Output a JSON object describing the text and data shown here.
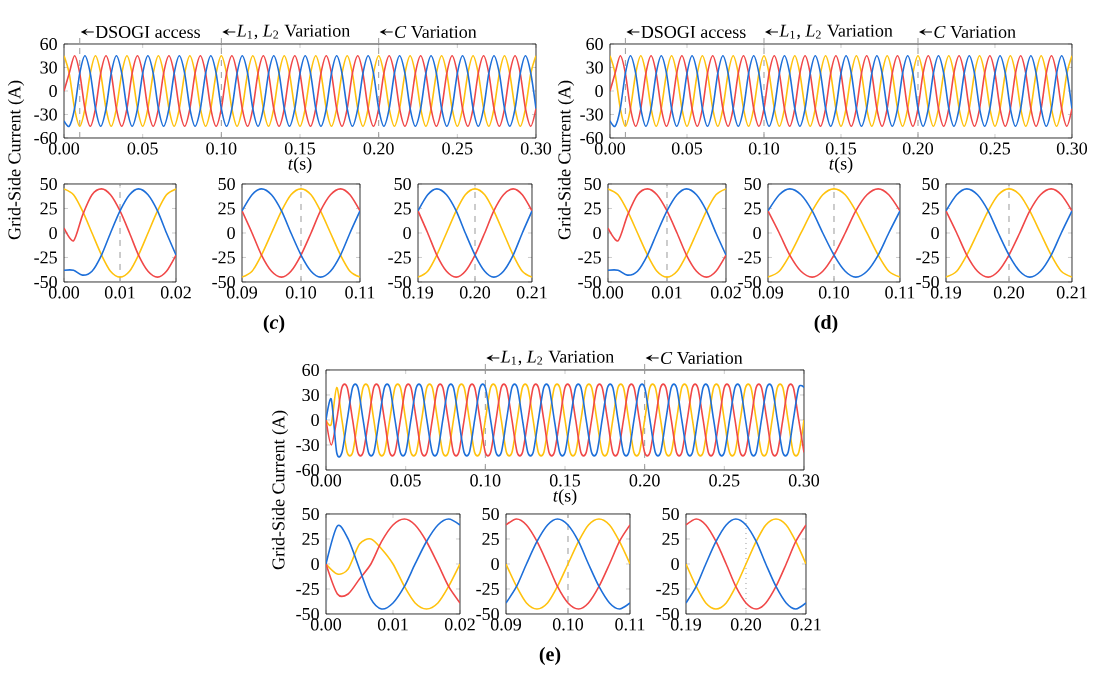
{
  "chart_data": [
    {
      "type": "line",
      "ylabel": "Grid-Side Current (A)",
      "xlabel": "*t*(s)",
      "annotations": [
        "(*c*)"
      ],
      "xlim": [
        0,
        0.3
      ],
      "ylim": [
        -60,
        60
      ],
      "xticks": [
        {
          "value": 0,
          "label": "0.00"
        },
        {
          "value": 0.05,
          "label": "0.05"
        },
        {
          "value": 0.1,
          "label": "0.10"
        },
        {
          "value": 0.15,
          "label": "0.15"
        },
        {
          "value": 0.2,
          "label": "0.20"
        },
        {
          "value": 0.25,
          "label": "0.25"
        },
        {
          "value": 0.3,
          "label": "0.30"
        }
      ],
      "yticks": [
        -60,
        -30,
        0,
        30,
        60
      ],
      "ref_lines": [
        {
          "axis": "x",
          "value": 0.01,
          "label": "DSOGI access",
          "color": "#999999",
          "line_style": "dashed"
        },
        {
          "axis": "x",
          "value": 0.1,
          "label": "*L*$_{1}$, *L*$_{2}$ Variation",
          "color": "#999999",
          "line_style": "dashed"
        },
        {
          "axis": "x",
          "value": 0.2,
          "label": "*C* Variation",
          "color": "#999999",
          "line_style": "dashed"
        }
      ],
      "x": [
        0,
        0.0033,
        0.0067,
        0.01,
        0.0133,
        0.0167,
        0.02,
        0.0233,
        0.0267,
        0.03,
        0.0333,
        0.0367,
        0.04,
        0.0433,
        0.0467,
        0.05,
        0.0533,
        0.0567,
        0.06,
        0.0633,
        0.0667,
        0.07,
        0.0733,
        0.0767,
        0.08,
        0.0833,
        0.0867,
        0.09,
        0.0933,
        0.0967,
        0.1,
        0.1033,
        0.1067,
        0.11,
        0.1133,
        0.1167,
        0.12,
        0.1233,
        0.1267,
        0.13,
        0.1333,
        0.1367,
        0.14,
        0.1433,
        0.1467,
        0.15,
        0.1533,
        0.1567,
        0.16,
        0.1633,
        0.1667,
        0.17,
        0.1733,
        0.1767,
        0.18,
        0.1833,
        0.1867,
        0.19,
        0.1933,
        0.1967,
        0.2,
        0.2033,
        0.2067,
        0.21,
        0.2133,
        0.2167,
        0.22,
        0.2233,
        0.2267,
        0.23,
        0.2333,
        0.2367,
        0.24,
        0.2433,
        0.2467,
        0.25,
        0.2533,
        0.2567,
        0.26,
        0.2633,
        0.2667,
        0.27,
        0.2733,
        0.2767,
        0.28,
        0.2833,
        0.2867,
        0.29,
        0.2933,
        0.2967,
        0.3
      ],
      "series": [
        {
          "color": "#ffc20e",
          "values": [
            45,
            22.5,
            -22.5,
            -45,
            -22.5,
            22.5,
            45,
            22.5,
            -22.5,
            -45,
            -22.5,
            22.5,
            45,
            22.5,
            -22.5,
            -45,
            -22.5,
            22.5,
            45,
            22.5,
            -22.5,
            -45,
            -22.5,
            22.5,
            45,
            22.5,
            -22.5,
            -45,
            -22.5,
            22.5,
            45,
            22.5,
            -22.5,
            -45,
            -22.5,
            22.5,
            45,
            22.5,
            -22.5,
            -45,
            -22.5,
            22.5,
            45,
            22.5,
            -22.5,
            -45,
            -22.5,
            22.5,
            45,
            22.5,
            -22.5,
            -45,
            -22.5,
            22.5,
            45,
            22.5,
            -22.5,
            -45,
            -22.5,
            22.5,
            45,
            22.5,
            -22.5,
            -45,
            -22.5,
            22.5,
            45,
            22.5,
            -22.5,
            -45,
            -22.5,
            22.5,
            45,
            22.5,
            -22.5,
            -45,
            -22.5,
            22.5,
            45,
            22.5,
            -22.5,
            -45,
            -22.5,
            22.5,
            45,
            22.5,
            -22.5,
            -45,
            -22.5,
            22.5,
            45
          ]
        },
        {
          "color": "#f04848",
          "values": [
            0,
            22.5,
            45,
            22.5,
            -22.5,
            -45,
            -22.5,
            22.5,
            45,
            22.5,
            -22.5,
            -45,
            -22.5,
            22.5,
            45,
            22.5,
            -22.5,
            -45,
            -22.5,
            22.5,
            45,
            22.5,
            -22.5,
            -45,
            -22.5,
            22.5,
            45,
            22.5,
            -22.5,
            -45,
            -22.5,
            22.5,
            45,
            22.5,
            -22.5,
            -45,
            -22.5,
            22.5,
            45,
            22.5,
            -22.5,
            -45,
            -22.5,
            22.5,
            45,
            22.5,
            -22.5,
            -45,
            -22.5,
            22.5,
            45,
            22.5,
            -22.5,
            -45,
            -22.5,
            22.5,
            45,
            22.5,
            -22.5,
            -45,
            -22.5,
            22.5,
            45,
            22.5,
            -22.5,
            -45,
            -22.5,
            22.5,
            45,
            22.5,
            -22.5,
            -45,
            -22.5,
            22.5,
            45,
            22.5,
            -22.5,
            -45,
            -22.5,
            22.5,
            45,
            22.5,
            -22.5,
            -45,
            -22.5,
            22.5,
            45,
            22.5,
            -22.5,
            -45,
            -22.5
          ]
        },
        {
          "color": "#1e6fd9",
          "values": [
            -38,
            -45,
            -22.5,
            22.5,
            45,
            22.5,
            -22.5,
            -45,
            -22.5,
            22.5,
            45,
            22.5,
            -22.5,
            -45,
            -22.5,
            22.5,
            45,
            22.5,
            -22.5,
            -45,
            -22.5,
            22.5,
            45,
            22.5,
            -22.5,
            -45,
            -22.5,
            22.5,
            45,
            22.5,
            -22.5,
            -45,
            -22.5,
            22.5,
            45,
            22.5,
            -22.5,
            -45,
            -22.5,
            22.5,
            45,
            22.5,
            -22.5,
            -45,
            -22.5,
            22.5,
            45,
            22.5,
            -22.5,
            -45,
            -22.5,
            22.5,
            45,
            22.5,
            -22.5,
            -45,
            -22.5,
            22.5,
            45,
            22.5,
            -22.5,
            -45,
            -22.5,
            22.5,
            45,
            22.5,
            -22.5,
            -45,
            -22.5,
            22.5,
            45,
            22.5,
            -22.5,
            -45,
            -22.5,
            22.5,
            45,
            22.5,
            -22.5,
            -45,
            -22.5,
            22.5,
            45,
            22.5,
            -22.5,
            -45,
            -22.5,
            22.5,
            45,
            22.5,
            -22.5
          ]
        }
      ]
    },
    {
      "type": "line",
      "ylabel": "Grid-Side Current (A)",
      "xlabel": "*t*(s)",
      "annotations": [
        "(**d**)"
      ],
      "xlim": [
        0,
        0.3
      ],
      "ylim": [
        -60,
        60
      ],
      "xticks": [
        {
          "value": 0,
          "label": "0.00"
        },
        {
          "value": 0.05,
          "label": "0.05"
        },
        {
          "value": 0.1,
          "label": "0.10"
        },
        {
          "value": 0.15,
          "label": "0.15"
        },
        {
          "value": 0.2,
          "label": "0.20"
        },
        {
          "value": 0.25,
          "label": "0.25"
        },
        {
          "value": 0.3,
          "label": "0.30"
        }
      ],
      "yticks": [
        -60,
        -30,
        0,
        30,
        60
      ],
      "ref_lines": [
        {
          "axis": "x",
          "value": 0.01,
          "label": "DSOGI access",
          "color": "#999999",
          "line_style": "dashed"
        },
        {
          "axis": "x",
          "value": 0.1,
          "label": "*L*$_{1}$, *L*$_{2}$ Variation",
          "color": "#999999",
          "line_style": "dashed"
        },
        {
          "axis": "x",
          "value": 0.2,
          "label": "*C* Variation",
          "color": "#999999",
          "line_style": "dashed"
        }
      ],
      "x": [
        0,
        0.0033,
        0.0067,
        0.01,
        0.0133,
        0.0167,
        0.02,
        0.0233,
        0.0267,
        0.03,
        0.0333,
        0.0367,
        0.04,
        0.0433,
        0.0467,
        0.05,
        0.0533,
        0.0567,
        0.06,
        0.0633,
        0.0667,
        0.07,
        0.0733,
        0.0767,
        0.08,
        0.0833,
        0.0867,
        0.09,
        0.0933,
        0.0967,
        0.1,
        0.1033,
        0.1067,
        0.11,
        0.1133,
        0.1167,
        0.12,
        0.1233,
        0.1267,
        0.13,
        0.1333,
        0.1367,
        0.14,
        0.1433,
        0.1467,
        0.15,
        0.1533,
        0.1567,
        0.16,
        0.1633,
        0.1667,
        0.17,
        0.1733,
        0.1767,
        0.18,
        0.1833,
        0.1867,
        0.19,
        0.1933,
        0.1967,
        0.2,
        0.2033,
        0.2067,
        0.21,
        0.2133,
        0.2167,
        0.22,
        0.2233,
        0.2267,
        0.23,
        0.2333,
        0.2367,
        0.24,
        0.2433,
        0.2467,
        0.25,
        0.2533,
        0.2567,
        0.26,
        0.2633,
        0.2667,
        0.27,
        0.2733,
        0.2767,
        0.28,
        0.2833,
        0.2867,
        0.29,
        0.2933,
        0.2967,
        0.3
      ],
      "series": [
        {
          "color": "#ffc20e",
          "values": [
            45,
            22.5,
            -22.5,
            -45,
            -22.5,
            22.5,
            45,
            22.5,
            -22.5,
            -45,
            -22.5,
            22.5,
            45,
            22.5,
            -22.5,
            -45,
            -22.5,
            22.5,
            45,
            22.5,
            -22.5,
            -45,
            -22.5,
            22.5,
            45,
            22.5,
            -22.5,
            -45,
            -22.5,
            22.5,
            45,
            22.5,
            -22.5,
            -45,
            -22.5,
            22.5,
            45,
            22.5,
            -22.5,
            -45,
            -22.5,
            22.5,
            45,
            22.5,
            -22.5,
            -45,
            -22.5,
            22.5,
            45,
            22.5,
            -22.5,
            -45,
            -22.5,
            22.5,
            45,
            22.5,
            -22.5,
            -45,
            -22.5,
            22.5,
            45,
            22.5,
            -22.5,
            -45,
            -22.5,
            22.5,
            45,
            22.5,
            -22.5,
            -45,
            -22.5,
            22.5,
            45,
            22.5,
            -22.5,
            -45,
            -22.5,
            22.5,
            45,
            22.5,
            -22.5,
            -45,
            -22.5,
            22.5,
            45,
            22.5,
            -22.5,
            -45,
            -22.5,
            22.5,
            45
          ]
        },
        {
          "color": "#f04848",
          "values": [
            0,
            22.5,
            45,
            22.5,
            -22.5,
            -45,
            -22.5,
            22.5,
            45,
            22.5,
            -22.5,
            -45,
            -22.5,
            22.5,
            45,
            22.5,
            -22.5,
            -45,
            -22.5,
            22.5,
            45,
            22.5,
            -22.5,
            -45,
            -22.5,
            22.5,
            45,
            22.5,
            -22.5,
            -45,
            -22.5,
            22.5,
            45,
            22.5,
            -22.5,
            -45,
            -22.5,
            22.5,
            45,
            22.5,
            -22.5,
            -45,
            -22.5,
            22.5,
            45,
            22.5,
            -22.5,
            -45,
            -22.5,
            22.5,
            45,
            22.5,
            -22.5,
            -45,
            -22.5,
            22.5,
            45,
            22.5,
            -22.5,
            -45,
            -22.5,
            22.5,
            45,
            22.5,
            -22.5,
            -45,
            -22.5,
            22.5,
            45,
            22.5,
            -22.5,
            -45,
            -22.5,
            22.5,
            45,
            22.5,
            -22.5,
            -45,
            -22.5,
            22.5,
            45,
            22.5,
            -22.5,
            -45,
            -22.5,
            22.5,
            45,
            22.5,
            -22.5,
            -45,
            -22.5
          ]
        },
        {
          "color": "#1e6fd9",
          "values": [
            -38,
            -45,
            -22.5,
            22.5,
            45,
            22.5,
            -22.5,
            -45,
            -22.5,
            22.5,
            45,
            22.5,
            -22.5,
            -45,
            -22.5,
            22.5,
            45,
            22.5,
            -22.5,
            -45,
            -22.5,
            22.5,
            45,
            22.5,
            -22.5,
            -45,
            -22.5,
            22.5,
            45,
            22.5,
            -22.5,
            -45,
            -22.5,
            22.5,
            45,
            22.5,
            -22.5,
            -45,
            -22.5,
            22.5,
            45,
            22.5,
            -22.5,
            -45,
            -22.5,
            22.5,
            45,
            22.5,
            -22.5,
            -45,
            -22.5,
            22.5,
            45,
            22.5,
            -22.5,
            -45,
            -22.5,
            22.5,
            45,
            22.5,
            -22.5,
            -45,
            -22.5,
            22.5,
            45,
            22.5,
            -22.5,
            -45,
            -22.5,
            22.5,
            45,
            22.5,
            -22.5,
            -45,
            -22.5,
            22.5,
            45,
            22.5,
            -22.5,
            -45,
            -22.5,
            22.5,
            45,
            22.5,
            -22.5,
            -45,
            -22.5,
            22.5,
            45,
            22.5,
            -22.5
          ]
        }
      ]
    },
    {
      "type": "line",
      "xlim": [
        0,
        0.02
      ],
      "ylim": [
        -50,
        50
      ],
      "xticks": [
        {
          "value": 0,
          "label": "0.00"
        },
        {
          "value": 0.01,
          "label": "0.01"
        },
        {
          "value": 0.02,
          "label": "0.02"
        }
      ],
      "yticks": [
        -50,
        -25,
        0,
        25,
        50
      ],
      "ref_lines": [
        {
          "axis": "x",
          "value": 0.01,
          "color": "#999999",
          "line_style": "dashed"
        }
      ],
      "x": [
        0,
        0.0017,
        0.0033,
        0.005,
        0.0067,
        0.0083,
        0.01,
        0.0117,
        0.0133,
        0.015,
        0.0167,
        0.0183,
        0.02
      ],
      "series": [
        {
          "color": "#ffc20e",
          "values": [
            45,
            39,
            22.5,
            0,
            -22.5,
            -39,
            -45,
            -39,
            -22.5,
            0,
            22.5,
            39,
            45
          ]
        },
        {
          "color": "#f04848",
          "values": [
            5,
            -8,
            18,
            39,
            45,
            39,
            22.5,
            0,
            -22.5,
            -39,
            -45,
            -39,
            -22.5
          ]
        },
        {
          "color": "#1e6fd9",
          "values": [
            -38,
            -38,
            -43,
            -39,
            -22.5,
            0,
            22.5,
            39,
            45,
            39,
            22.5,
            0,
            -22.5
          ]
        }
      ]
    },
    {
      "type": "line",
      "xlim": [
        0.09,
        0.11
      ],
      "ylim": [
        -50,
        50
      ],
      "xticks": [
        {
          "value": 0.09,
          "label": "0.09"
        },
        {
          "value": 0.1,
          "label": "0.10"
        },
        {
          "value": 0.11,
          "label": "0.11"
        }
      ],
      "yticks": [
        -50,
        -25,
        0,
        25,
        50
      ],
      "ref_lines": [
        {
          "axis": "x",
          "value": 0.1,
          "color": "#999999",
          "line_style": "dashed"
        }
      ],
      "x": [
        0.09,
        0.0917,
        0.0933,
        0.095,
        0.0967,
        0.0983,
        0.1,
        0.1017,
        0.1033,
        0.105,
        0.1067,
        0.1083,
        0.11
      ],
      "series": [
        {
          "color": "#ffc20e",
          "values": [
            -45,
            -39,
            -22.5,
            0,
            22.5,
            39,
            45,
            39,
            22.5,
            0,
            -22.5,
            -39,
            -45
          ]
        },
        {
          "color": "#f04848",
          "values": [
            22.5,
            0,
            -22.5,
            -39,
            -45,
            -39,
            -22.5,
            0,
            22.5,
            39,
            45,
            39,
            22.5
          ]
        },
        {
          "color": "#1e6fd9",
          "values": [
            22.5,
            39,
            45,
            39,
            22.5,
            0,
            -22.5,
            -39,
            -45,
            -39,
            -22.5,
            0,
            22.5
          ]
        }
      ]
    },
    {
      "type": "line",
      "xlim": [
        0.19,
        0.21
      ],
      "ylim": [
        -50,
        50
      ],
      "xticks": [
        {
          "value": 0.19,
          "label": "0.19"
        },
        {
          "value": 0.2,
          "label": "0.20"
        },
        {
          "value": 0.21,
          "label": "0.21"
        }
      ],
      "yticks": [
        -50,
        -25,
        0,
        25,
        50
      ],
      "ref_lines": [
        {
          "axis": "x",
          "value": 0.2,
          "color": "#999999",
          "line_style": "dashed"
        }
      ],
      "x": [
        0.19,
        0.1917,
        0.1933,
        0.195,
        0.1967,
        0.1983,
        0.2,
        0.2017,
        0.2033,
        0.205,
        0.2067,
        0.2083,
        0.21
      ],
      "series": [
        {
          "color": "#ffc20e",
          "values": [
            -45,
            -39,
            -22.5,
            0,
            22.5,
            39,
            45,
            39,
            22.5,
            0,
            -22.5,
            -39,
            -45
          ]
        },
        {
          "color": "#f04848",
          "values": [
            22.5,
            0,
            -22.5,
            -39,
            -45,
            -39,
            -22.5,
            0,
            22.5,
            39,
            45,
            39,
            22.5
          ]
        },
        {
          "color": "#1e6fd9",
          "values": [
            22.5,
            39,
            45,
            39,
            22.5,
            0,
            -22.5,
            -39,
            -45,
            -39,
            -22.5,
            0,
            22.5
          ]
        }
      ]
    },
    {
      "type": "line",
      "xlim": [
        0,
        0.02
      ],
      "ylim": [
        -50,
        50
      ],
      "xticks": [
        {
          "value": 0,
          "label": "0.00"
        },
        {
          "value": 0.01,
          "label": "0.01"
        },
        {
          "value": 0.02,
          "label": "0.02"
        }
      ],
      "yticks": [
        -50,
        -25,
        0,
        25,
        50
      ],
      "ref_lines": [
        {
          "axis": "x",
          "value": 0.01,
          "color": "#999999",
          "line_style": "dashed"
        }
      ],
      "x": [
        0,
        0.0017,
        0.0033,
        0.005,
        0.0067,
        0.0083,
        0.01,
        0.0117,
        0.0133,
        0.015,
        0.0167,
        0.0183,
        0.02
      ],
      "series": [
        {
          "color": "#ffc20e",
          "values": [
            45,
            39,
            22.5,
            0,
            -22.5,
            -39,
            -45,
            -39,
            -22.5,
            0,
            22.5,
            39,
            45
          ]
        },
        {
          "color": "#f04848",
          "values": [
            5,
            -8,
            18,
            39,
            45,
            39,
            22.5,
            0,
            -22.5,
            -39,
            -45,
            -39,
            -22.5
          ]
        },
        {
          "color": "#1e6fd9",
          "values": [
            -38,
            -38,
            -43,
            -39,
            -22.5,
            0,
            22.5,
            39,
            45,
            39,
            22.5,
            0,
            -22.5
          ]
        }
      ]
    },
    {
      "type": "line",
      "xlim": [
        0.09,
        0.11
      ],
      "ylim": [
        -50,
        50
      ],
      "xticks": [
        {
          "value": 0.09,
          "label": "0.09"
        },
        {
          "value": 0.1,
          "label": "0.10"
        },
        {
          "value": 0.11,
          "label": "0.11"
        }
      ],
      "yticks": [
        -50,
        -25,
        0,
        25,
        50
      ],
      "ref_lines": [
        {
          "axis": "x",
          "value": 0.1,
          "color": "#999999",
          "line_style": "dashed"
        }
      ],
      "x": [
        0.09,
        0.0917,
        0.0933,
        0.095,
        0.0967,
        0.0983,
        0.1,
        0.1017,
        0.1033,
        0.105,
        0.1067,
        0.1083,
        0.11
      ],
      "series": [
        {
          "color": "#ffc20e",
          "values": [
            -45,
            -39,
            -22.5,
            0,
            22.5,
            39,
            45,
            39,
            22.5,
            0,
            -22.5,
            -39,
            -45
          ]
        },
        {
          "color": "#f04848",
          "values": [
            22.5,
            0,
            -22.5,
            -39,
            -45,
            -39,
            -22.5,
            0,
            22.5,
            39,
            45,
            39,
            22.5
          ]
        },
        {
          "color": "#1e6fd9",
          "values": [
            22.5,
            39,
            45,
            39,
            22.5,
            0,
            -22.5,
            -39,
            -45,
            -39,
            -22.5,
            0,
            22.5
          ]
        }
      ]
    },
    {
      "type": "line",
      "xlim": [
        0.19,
        0.21
      ],
      "ylim": [
        -50,
        50
      ],
      "xticks": [
        {
          "value": 0.19,
          "label": "0.19"
        },
        {
          "value": 0.2,
          "label": "0.20"
        },
        {
          "value": 0.21,
          "label": "0.21"
        }
      ],
      "yticks": [
        -50,
        -25,
        0,
        25,
        50
      ],
      "ref_lines": [
        {
          "axis": "x",
          "value": 0.2,
          "color": "#999999",
          "line_style": "dashed"
        }
      ],
      "x": [
        0.19,
        0.1917,
        0.1933,
        0.195,
        0.1967,
        0.1983,
        0.2,
        0.2017,
        0.2033,
        0.205,
        0.2067,
        0.2083,
        0.21
      ],
      "series": [
        {
          "color": "#ffc20e",
          "values": [
            -45,
            -39,
            -22.5,
            0,
            22.5,
            39,
            45,
            39,
            22.5,
            0,
            -22.5,
            -39,
            -45
          ]
        },
        {
          "color": "#f04848",
          "values": [
            22.5,
            0,
            -22.5,
            -39,
            -45,
            -39,
            -22.5,
            0,
            22.5,
            39,
            45,
            39,
            22.5
          ]
        },
        {
          "color": "#1e6fd9",
          "values": [
            22.5,
            39,
            45,
            39,
            22.5,
            0,
            -22.5,
            -39,
            -45,
            -39,
            -22.5,
            0,
            22.5
          ]
        }
      ]
    },
    {
      "type": "line",
      "ylabel": "Grid-Side Current (A)",
      "xlabel": "*t*(s)",
      "annotations": [
        "(**e**)"
      ],
      "xlim": [
        0,
        0.3
      ],
      "ylim": [
        -60,
        60
      ],
      "xticks": [
        {
          "value": 0,
          "label": "0.00"
        },
        {
          "value": 0.05,
          "label": "0.05"
        },
        {
          "value": 0.1,
          "label": "0.10"
        },
        {
          "value": 0.15,
          "label": "0.15"
        },
        {
          "value": 0.2,
          "label": "0.20"
        },
        {
          "value": 0.25,
          "label": "0.25"
        },
        {
          "value": 0.3,
          "label": "0.30"
        }
      ],
      "yticks": [
        -60,
        -30,
        0,
        30,
        60
      ],
      "ref_lines": [
        {
          "axis": "x",
          "value": 0.1,
          "label": "*L*$_{1}$, *L*$_{2}$ Variation",
          "color": "#999999",
          "line_style": "dashed"
        },
        {
          "axis": "x",
          "value": 0.2,
          "label": "*C* Variation",
          "color": "#999999",
          "line_style": "dashed"
        }
      ],
      "x": [
        0,
        0.0033,
        0.0067,
        0.01,
        0.0133,
        0.0167,
        0.02,
        0.0233,
        0.0267,
        0.03,
        0.0333,
        0.0367,
        0.04,
        0.0433,
        0.0467,
        0.05,
        0.0533,
        0.0567,
        0.06,
        0.0633,
        0.0667,
        0.07,
        0.0733,
        0.0767,
        0.08,
        0.0833,
        0.0867,
        0.09,
        0.0933,
        0.0967,
        0.1,
        0.1033,
        0.1067,
        0.11,
        0.1133,
        0.1167,
        0.12,
        0.1233,
        0.1267,
        0.13,
        0.1333,
        0.1367,
        0.14,
        0.1433,
        0.1467,
        0.15,
        0.1533,
        0.1567,
        0.16,
        0.1633,
        0.1667,
        0.17,
        0.1733,
        0.1767,
        0.18,
        0.1833,
        0.1867,
        0.19,
        0.1933,
        0.1967,
        0.2,
        0.2033,
        0.2067,
        0.21,
        0.2133,
        0.2167,
        0.22,
        0.2233,
        0.2267,
        0.23,
        0.2333,
        0.2367,
        0.24,
        0.2433,
        0.2467,
        0.25,
        0.2533,
        0.2567,
        0.26,
        0.2633,
        0.2667,
        0.27,
        0.2733,
        0.2767,
        0.28,
        0.2833,
        0.2867,
        0.29,
        0.2933,
        0.2967,
        0.3
      ],
      "series": [
        {
          "color": "#ffc20e",
          "values": [
            0,
            -5,
            39,
            0,
            -39,
            -39,
            0,
            39,
            39,
            0,
            -39,
            -39,
            0,
            39,
            39,
            0,
            -39,
            -39,
            0,
            39,
            39,
            0,
            -39,
            -39,
            0,
            39,
            39,
            0,
            -39,
            -39,
            0,
            39,
            39,
            0,
            -39,
            -39,
            0,
            39,
            39,
            0,
            -39,
            -39,
            0,
            39,
            39,
            0,
            -39,
            -39,
            0,
            39,
            39,
            0,
            -39,
            -39,
            0,
            39,
            39,
            0,
            -39,
            -39,
            0,
            39,
            39,
            0,
            -39,
            -39,
            0,
            39,
            39,
            0,
            -39,
            -39,
            0,
            39,
            39,
            0,
            -39,
            -39,
            0,
            39,
            39,
            0,
            -39,
            -39,
            0,
            39,
            39,
            0,
            -39,
            -39,
            0
          ]
        },
        {
          "color": "#f04848",
          "values": [
            0,
            -30,
            0,
            39,
            39,
            0,
            -39,
            -39,
            0,
            39,
            39,
            0,
            -39,
            -39,
            0,
            39,
            39,
            0,
            -39,
            -39,
            0,
            39,
            39,
            0,
            -39,
            -39,
            0,
            39,
            39,
            0,
            -39,
            -39,
            0,
            39,
            39,
            0,
            -39,
            -39,
            0,
            39,
            39,
            0,
            -39,
            -39,
            0,
            39,
            39,
            0,
            -39,
            -39,
            0,
            39,
            39,
            0,
            -39,
            -39,
            0,
            39,
            39,
            0,
            -39,
            -39,
            0,
            39,
            39,
            0,
            -39,
            -39,
            0,
            39,
            39,
            0,
            -39,
            -39,
            0,
            39,
            39,
            0,
            -39,
            -39,
            0,
            39,
            39,
            0,
            -39,
            -39,
            0,
            39,
            39,
            0,
            -39
          ]
        },
        {
          "color": "#1e6fd9",
          "values": [
            0,
            25,
            -39,
            -39,
            0,
            39,
            39,
            0,
            -39,
            -39,
            0,
            39,
            39,
            0,
            -39,
            -39,
            0,
            39,
            39,
            0,
            -39,
            -39,
            0,
            39,
            39,
            0,
            -39,
            -39,
            0,
            39,
            39,
            0,
            -39,
            -39,
            0,
            39,
            39,
            0,
            -39,
            -39,
            0,
            39,
            39,
            0,
            -39,
            -39,
            0,
            39,
            39,
            0,
            -39,
            -39,
            0,
            39,
            39,
            0,
            -39,
            -39,
            0,
            39,
            39,
            0,
            -39,
            -39,
            0,
            39,
            39,
            0,
            -39,
            -39,
            0,
            39,
            39,
            0,
            -39,
            -39,
            0,
            39,
            39,
            0,
            -39,
            -39,
            0,
            39,
            39,
            0,
            -39,
            -39,
            0,
            39,
            39
          ]
        }
      ]
    },
    {
      "type": "line",
      "xlim": [
        0,
        0.02
      ],
      "ylim": [
        -50,
        50
      ],
      "xticks": [
        {
          "value": 0,
          "label": "0.00"
        },
        {
          "value": 0.01,
          "label": "0.01"
        },
        {
          "value": 0.02,
          "label": "0.02"
        }
      ],
      "yticks": [
        -50,
        -25,
        0,
        25,
        50
      ],
      "x": [
        0,
        0.0017,
        0.0033,
        0.005,
        0.0067,
        0.0083,
        0.01,
        0.0117,
        0.0133,
        0.015,
        0.0167,
        0.0183,
        0.02
      ],
      "series": [
        {
          "color": "#ffc20e",
          "values": [
            0,
            -10,
            -5,
            20,
            25,
            15,
            0,
            -22.5,
            -39,
            -45,
            -39,
            -22.5,
            0
          ]
        },
        {
          "color": "#f04848",
          "values": [
            0,
            -30,
            -30,
            -15,
            0,
            22.5,
            39,
            45,
            39,
            22.5,
            0,
            -22.5,
            -39
          ]
        },
        {
          "color": "#1e6fd9",
          "values": [
            0,
            38,
            25,
            -5,
            -35,
            -45,
            -39,
            -22.5,
            0,
            22.5,
            39,
            45,
            39
          ]
        }
      ]
    },
    {
      "type": "line",
      "xlim": [
        0.09,
        0.11
      ],
      "ylim": [
        -50,
        50
      ],
      "xticks": [
        {
          "value": 0.09,
          "label": "0.09"
        },
        {
          "value": 0.1,
          "label": "0.10"
        },
        {
          "value": 0.11,
          "label": "0.11"
        }
      ],
      "yticks": [
        -50,
        -25,
        0,
        25,
        50
      ],
      "ref_lines": [
        {
          "axis": "x",
          "value": 0.1,
          "color": "#999999",
          "line_style": "dashed"
        }
      ],
      "x": [
        0.09,
        0.0917,
        0.0933,
        0.095,
        0.0967,
        0.0983,
        0.1,
        0.1017,
        0.1033,
        0.105,
        0.1067,
        0.1083,
        0.11
      ],
      "series": [
        {
          "color": "#ffc20e",
          "values": [
            0,
            -22.5,
            -39,
            -45,
            -39,
            -22.5,
            0,
            22.5,
            39,
            45,
            39,
            22.5,
            0
          ]
        },
        {
          "color": "#f04848",
          "values": [
            39,
            45,
            39,
            22.5,
            0,
            -22.5,
            -39,
            -45,
            -39,
            -22.5,
            0,
            22.5,
            39
          ]
        },
        {
          "color": "#1e6fd9",
          "values": [
            -39,
            -22.5,
            0,
            22.5,
            39,
            45,
            39,
            22.5,
            0,
            -22.5,
            -39,
            -45,
            -39
          ]
        }
      ]
    },
    {
      "type": "line",
      "xlim": [
        0.19,
        0.21
      ],
      "ylim": [
        -50,
        50
      ],
      "xticks": [
        {
          "value": 0.19,
          "label": "0.19"
        },
        {
          "value": 0.2,
          "label": "0.20"
        },
        {
          "value": 0.21,
          "label": "0.21"
        }
      ],
      "yticks": [
        -50,
        -25,
        0,
        25,
        50
      ],
      "ref_lines": [
        {
          "axis": "x",
          "value": 0.2,
          "color": "#999999",
          "line_style": "dotted"
        }
      ],
      "x": [
        0.19,
        0.1917,
        0.1933,
        0.195,
        0.1967,
        0.1983,
        0.2,
        0.2017,
        0.2033,
        0.205,
        0.2067,
        0.2083,
        0.21
      ],
      "series": [
        {
          "color": "#ffc20e",
          "values": [
            0,
            -22.5,
            -39,
            -45,
            -39,
            -22.5,
            0,
            22.5,
            39,
            45,
            39,
            22.5,
            0
          ]
        },
        {
          "color": "#f04848",
          "values": [
            39,
            45,
            39,
            22.5,
            0,
            -22.5,
            -39,
            -45,
            -39,
            -22.5,
            0,
            22.5,
            39
          ]
        },
        {
          "color": "#1e6fd9",
          "values": [
            -39,
            -22.5,
            0,
            22.5,
            39,
            45,
            39,
            22.5,
            0,
            -22.5,
            -39,
            -45,
            -39
          ]
        }
      ]
    }
  ]
}
